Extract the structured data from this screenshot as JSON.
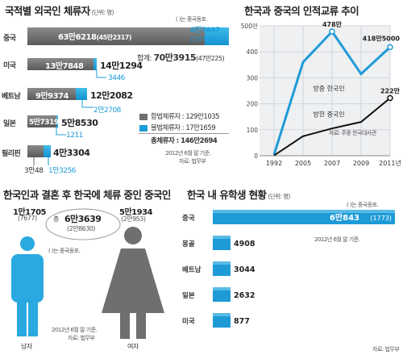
{
  "residents": {
    "title": "국적별 외국인 체류자",
    "unit": "(단위: 명)",
    "kdot_note": "( )는 중국동포.",
    "rows": [
      {
        "country": "중국",
        "legal": "63만6218",
        "legal_sub": "(45만2317)",
        "illegal": "6만7697",
        "illegal_sub": "(1만7908)"
      },
      {
        "country": "미국",
        "legal": "13만7848",
        "total": "14만1294",
        "illegal": "3446"
      },
      {
        "country": "베트남",
        "legal": "9만9374",
        "total": "12만2082",
        "illegal": "2만2708"
      },
      {
        "country": "일본",
        "legal": "5만7319",
        "total": "5만8530",
        "illegal": "1211"
      },
      {
        "country": "필리핀",
        "legal": "3만48",
        "total": "4만3304",
        "illegal": "1만3256"
      }
    ],
    "china_sum_label": "합계:",
    "china_sum": "70만3915",
    "china_sum_sub": "(47만225)",
    "legend_legal": "합법체류자 : 129만1035",
    "legend_illegal": "불법체류자 : 17만1659",
    "grand_total": "총체류자 : 146만2694",
    "date": "2012년 6월 말 기준.",
    "source": "자료: 법무부",
    "colors": {
      "legal": "#6e6e6e",
      "illegal": "#1e9bd7"
    }
  },
  "exchange": {
    "title": "한국과 중국의 인적교류 추이",
    "source": "자료: 주중 한국대사관",
    "chart_data": {
      "type": "line",
      "x": [
        "1992",
        "2005",
        "2007",
        "2009",
        "2011년"
      ],
      "yticks": [
        "0",
        "100",
        "200",
        "300",
        "400",
        "500만"
      ],
      "ylim": [
        0,
        500
      ],
      "series": [
        {
          "name": "방중 한국인",
          "values": [
            4,
            360,
            478,
            315,
            418
          ],
          "color": "#1e9bd7"
        },
        {
          "name": "방한 중국인",
          "values": [
            1,
            75,
            105,
            130,
            222
          ],
          "color": "#111111"
        }
      ],
      "labels": {
        "peak": "478만",
        "last_blue": "418만5000",
        "last_black": "222만"
      }
    }
  },
  "marriage": {
    "title": "한국인과 결혼 후 한국에 체류 중인 중국인",
    "unit": "(단위: 명)",
    "male_value": "1만1705",
    "male_sub": "(7677)",
    "female_value": "5만1934",
    "female_sub": "(2만953)",
    "total_label": "총",
    "total": "6만3639",
    "total_sub": "(2만8630)",
    "kdot_note": "( )는 중국동포.",
    "male_label": "남자",
    "female_label": "여자",
    "date": "2012년 6월 말 기준.",
    "source": "자료: 법무부",
    "colors": {
      "male": "#29a9e0",
      "female": "#6f6f6f"
    }
  },
  "students": {
    "title": "한국 내 유학생 현황",
    "unit": "(단위: 명)",
    "kdot_note": "( )는 중국동포.",
    "date": "2012년 6월 말 기준.",
    "source": "자료: 법무부",
    "chart_data": {
      "type": "bar",
      "categories": [
        "중국",
        "몽골",
        "베트남",
        "일본",
        "미국"
      ],
      "values": [
        60843,
        4908,
        3044,
        2632,
        877
      ],
      "value_labels": [
        "6만843",
        "4908",
        "3044",
        "2632",
        "877"
      ],
      "sub_labels": [
        "(1773)",
        "",
        "",
        "",
        ""
      ],
      "color": "#1e9bd7"
    }
  }
}
